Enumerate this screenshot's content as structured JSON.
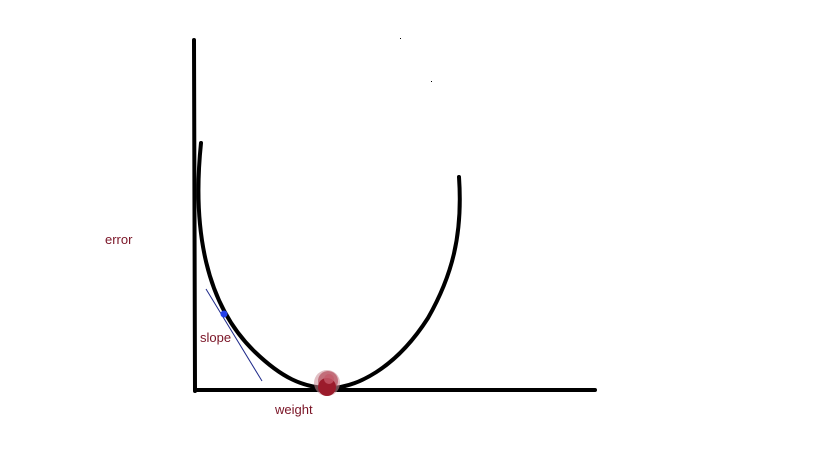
{
  "labels": {
    "y_axis": "error",
    "x_axis": "weight",
    "tangent": "slope"
  },
  "colors": {
    "background": "#ffffff",
    "axes": "#000000",
    "curve": "#000000",
    "label_text": "#7a1426",
    "tangent_line": "#1f2a8a",
    "tangent_point": "#2440e8",
    "minimum_marker": "#9b1b2b"
  }
}
